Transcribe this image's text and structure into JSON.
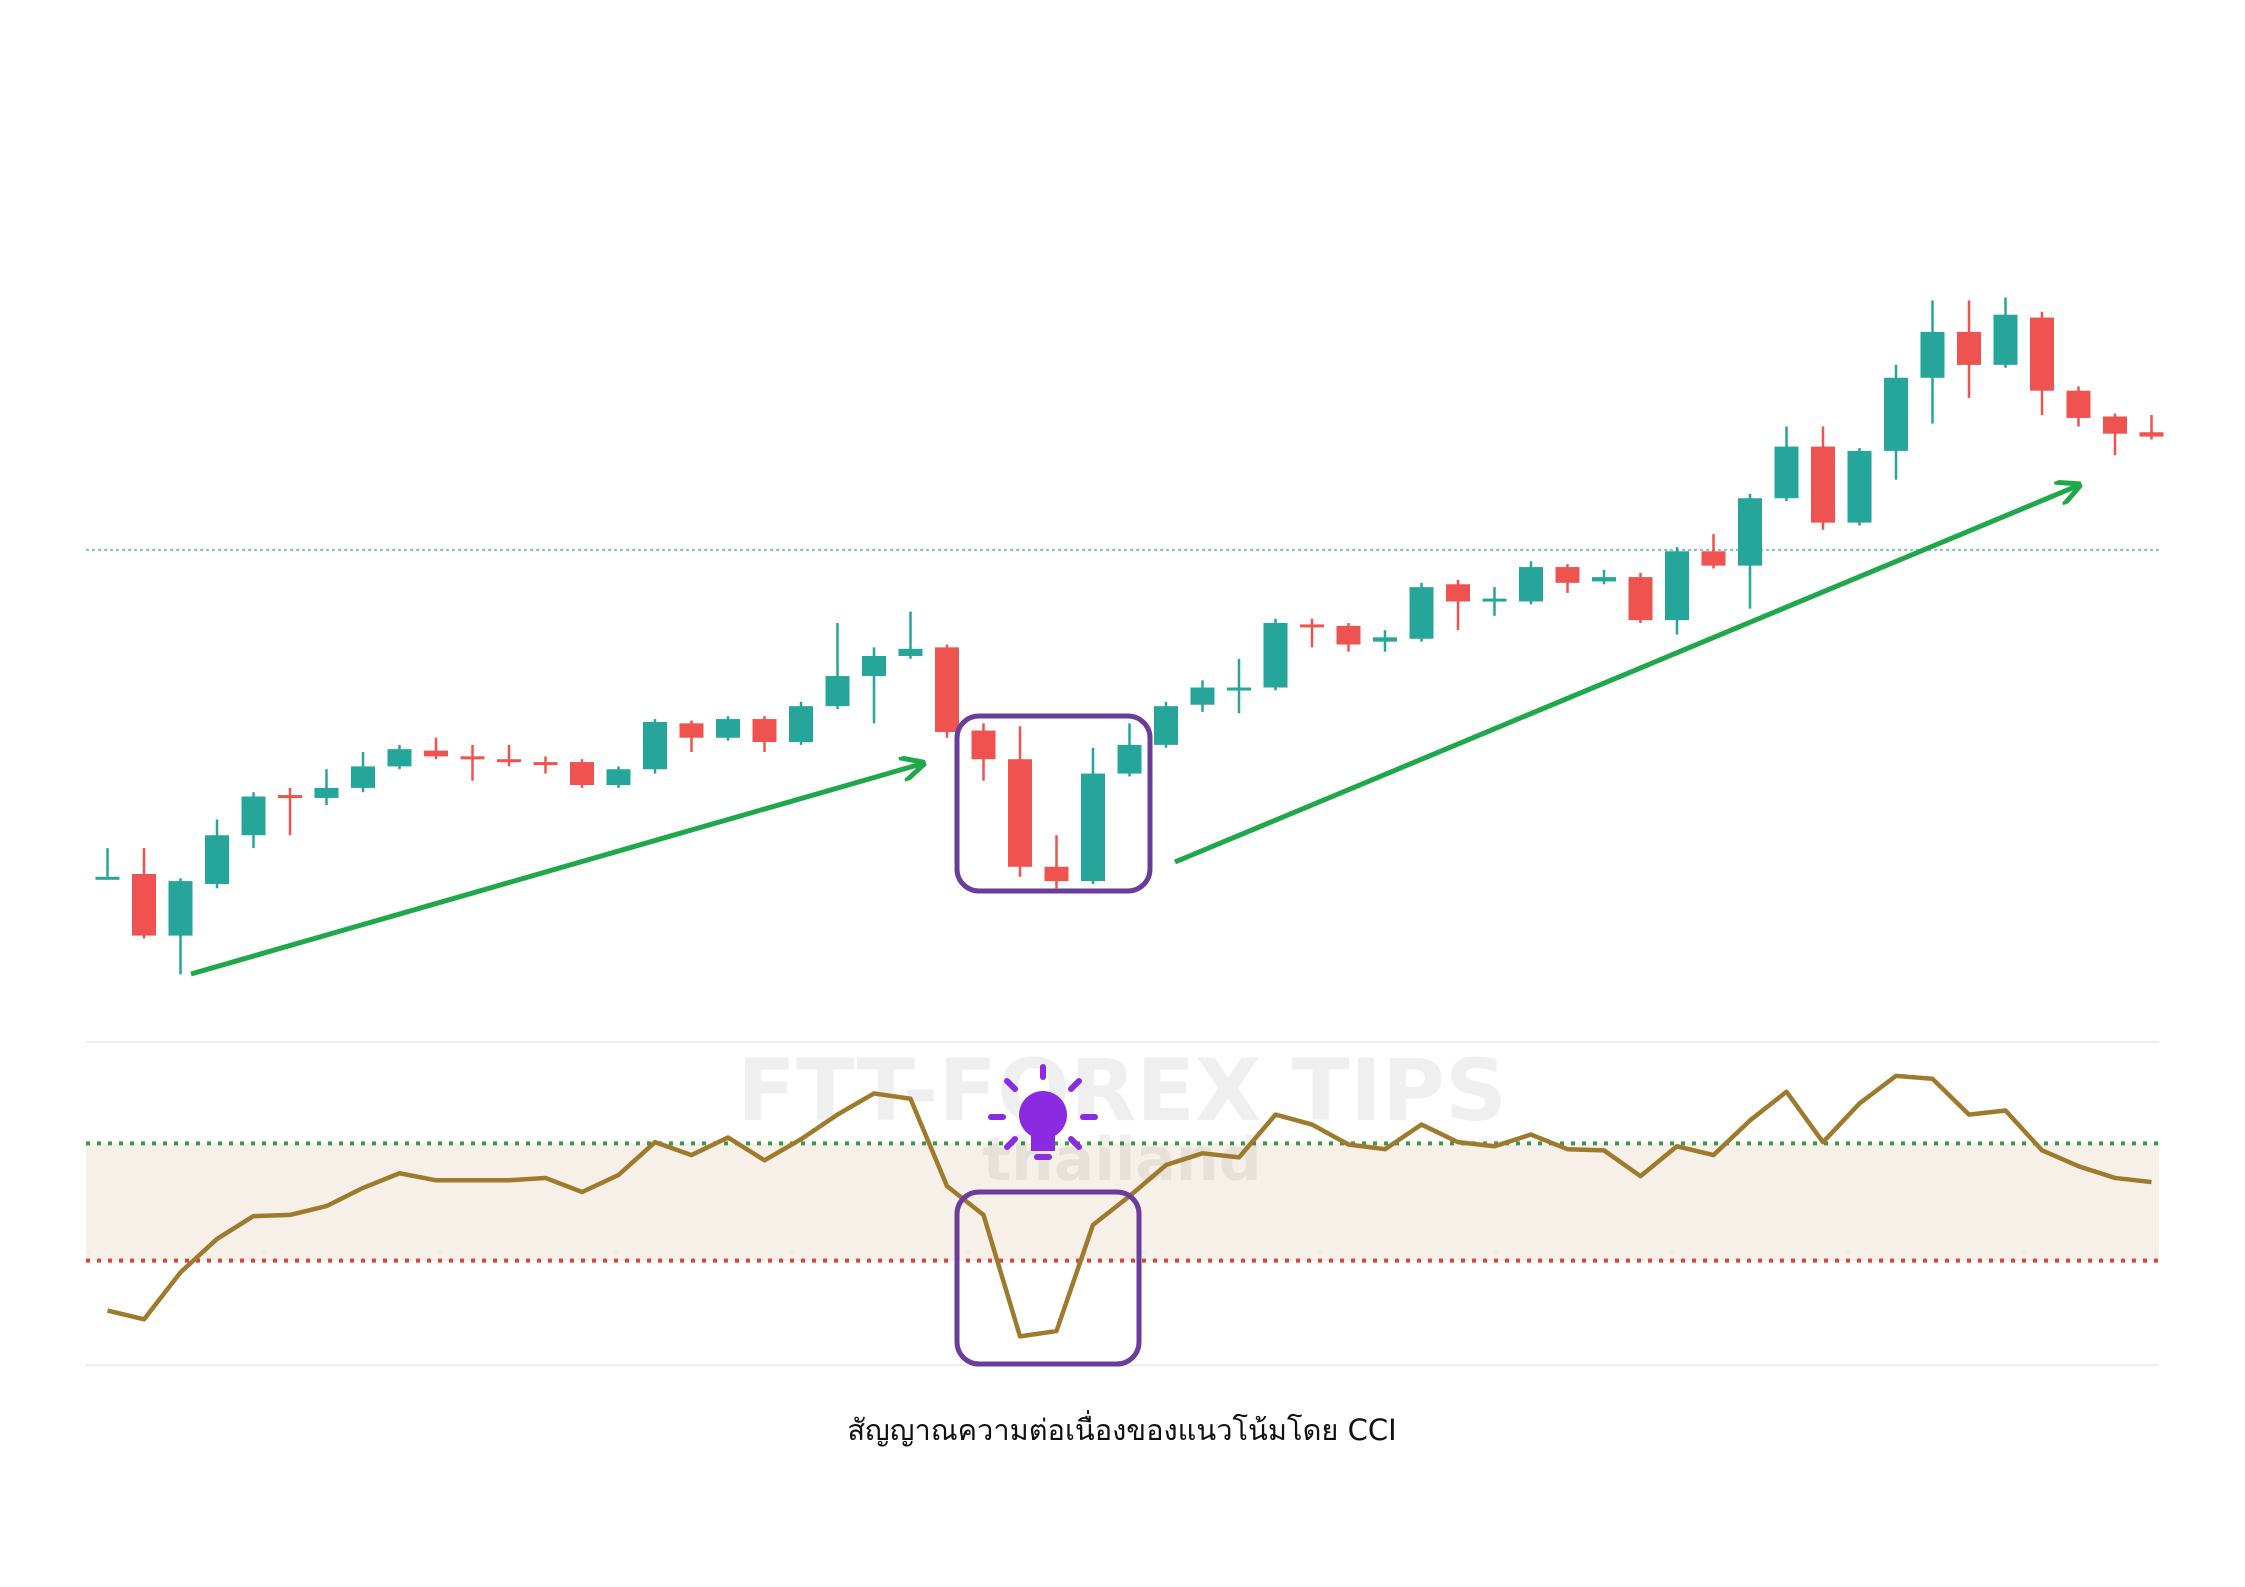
{
  "chart_data": [
    {
      "type": "candlestick",
      "caption": "สัญญาณความต่อเนื่องของแนวโน้มโดย CCI",
      "watermark": [
        "FTT-FOREX TIPS",
        "thailand"
      ],
      "up_color": "#26a69a",
      "down_color": "#ef5350",
      "ylim": [
        0,
        500
      ],
      "hline": {
        "value": 316,
        "color": "#7fc4c0"
      },
      "open": [
        88,
        90,
        47,
        83,
        117,
        145,
        143,
        150,
        165,
        176,
        172,
        170,
        168,
        168,
        152,
        163,
        195,
        185,
        198,
        182,
        207,
        228,
        242,
        248,
        190,
        170,
        95,
        85,
        160,
        180,
        208,
        220,
        220,
        264,
        263,
        252,
        254,
        292,
        280,
        280,
        304,
        294,
        297,
        267,
        315,
        305,
        352,
        388,
        335,
        385,
        436,
        468,
        445,
        478,
        427,
        409,
        398
      ],
      "high": [
        108,
        108,
        87,
        128,
        147,
        150,
        163,
        175,
        180,
        185,
        180,
        180,
        172,
        170,
        165,
        198,
        197,
        200,
        200,
        210,
        265,
        248,
        273,
        250,
        195,
        193,
        117,
        178,
        195,
        210,
        225,
        240,
        268,
        268,
        265,
        260,
        293,
        295,
        290,
        308,
        306,
        302,
        300,
        318,
        327,
        355,
        402,
        402,
        387,
        445,
        490,
        490,
        492,
        482,
        430,
        411,
        410
      ],
      "low": [
        88,
        45,
        20,
        80,
        108,
        117,
        138,
        147,
        163,
        170,
        155,
        165,
        160,
        150,
        150,
        160,
        175,
        183,
        175,
        180,
        205,
        195,
        240,
        185,
        155,
        88,
        80,
        83,
        158,
        178,
        203,
        202,
        218,
        248,
        245,
        245,
        252,
        260,
        270,
        278,
        286,
        292,
        265,
        257,
        303,
        275,
        350,
        330,
        333,
        365,
        404,
        422,
        443,
        410,
        402,
        382,
        393
      ],
      "close": [
        88,
        47,
        85,
        117,
        144,
        143,
        150,
        165,
        177,
        172,
        170,
        168,
        167,
        152,
        163,
        196,
        185,
        198,
        182,
        207,
        228,
        242,
        247,
        189,
        170,
        95,
        85,
        160,
        180,
        207,
        220,
        220,
        265,
        262,
        250,
        255,
        290,
        280,
        282,
        304,
        293,
        297,
        267,
        315,
        305,
        352,
        388,
        335,
        385,
        436,
        468,
        445,
        480,
        427,
        408,
        397,
        395
      ]
    },
    {
      "type": "line",
      "name": "CCI",
      "color": "#a07a2c",
      "ylim": [
        -300,
        300
      ],
      "levels": [
        {
          "value": 100,
          "color": "#3a9a4a"
        },
        {
          "value": -100,
          "color": "#d9433a"
        }
      ],
      "band_color": "#f6f0e8",
      "values": [
        -185,
        -200,
        -120,
        -63,
        -24,
        -22,
        -7,
        24,
        49,
        37,
        37,
        37,
        41,
        17,
        46,
        102,
        80,
        110,
        71,
        107,
        149,
        185,
        176,
        27,
        -22,
        -229,
        -220,
        -39,
        10,
        63,
        83,
        76,
        149,
        132,
        98,
        90,
        132,
        102,
        95,
        115,
        90,
        88,
        44,
        95,
        80,
        139,
        188,
        102,
        168,
        215,
        210,
        149,
        156,
        88,
        61,
        41,
        34
      ]
    }
  ]
}
